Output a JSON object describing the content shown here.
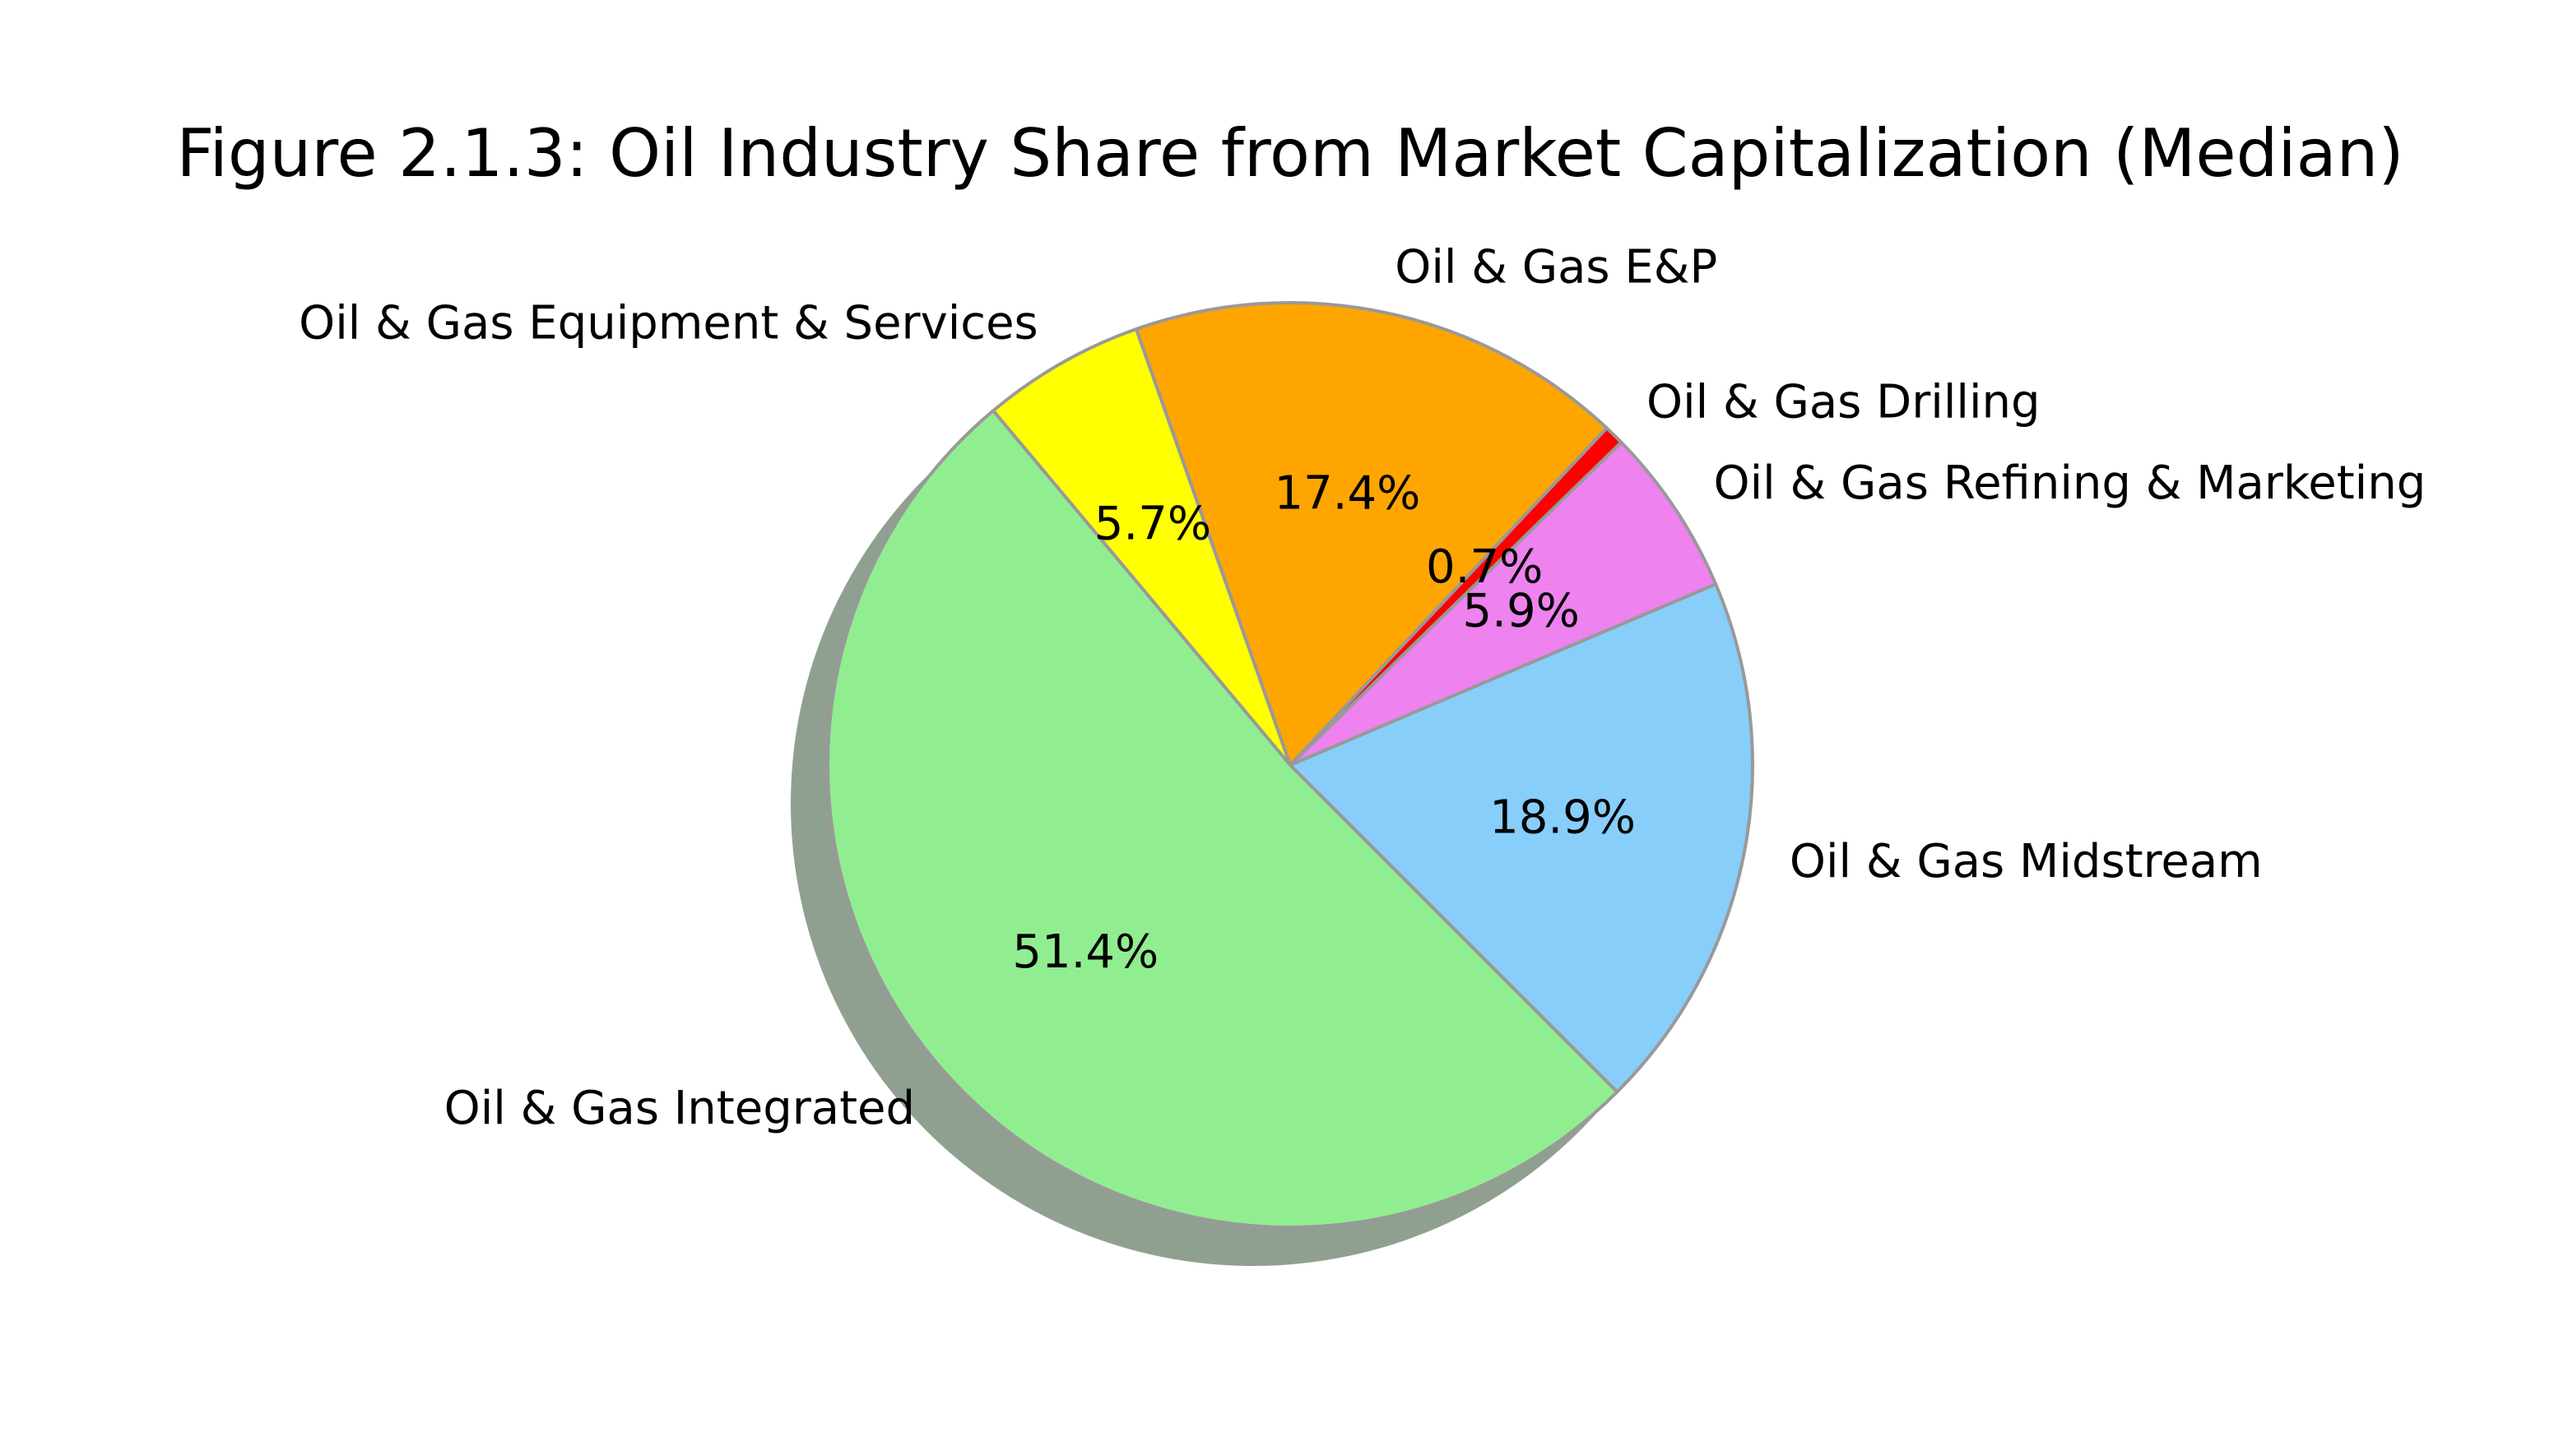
{
  "chart_data": {
    "type": "pie",
    "title": "Figure 2.1.3: Oil Industry Share from Market Capitalization (Median)",
    "slices": [
      {
        "label": "Oil & Gas Midstream",
        "value": 18.9,
        "pct_label": "18.9%",
        "color": "#87CEFA"
      },
      {
        "label": "Oil & Gas Refining & Marketing",
        "value": 5.9,
        "pct_label": "5.9%",
        "color": "#EE82EE"
      },
      {
        "label": "Oil & Gas Drilling",
        "value": 0.7,
        "pct_label": "0.7%",
        "color": "#FF0000"
      },
      {
        "label": "Oil & Gas E&P",
        "value": 17.4,
        "pct_label": "17.4%",
        "color": "#FFA500"
      },
      {
        "label": "Oil & Gas Equipment & Services",
        "value": 5.7,
        "pct_label": "5.7%",
        "color": "#FFFF00"
      },
      {
        "label": "Oil & Gas Integrated",
        "value": 51.4,
        "pct_label": "51.4%",
        "color": "#90EE90"
      }
    ],
    "start_angle_deg": -45,
    "shadow": true,
    "edge_color": "#999999",
    "shadow_color": "#90A090"
  }
}
